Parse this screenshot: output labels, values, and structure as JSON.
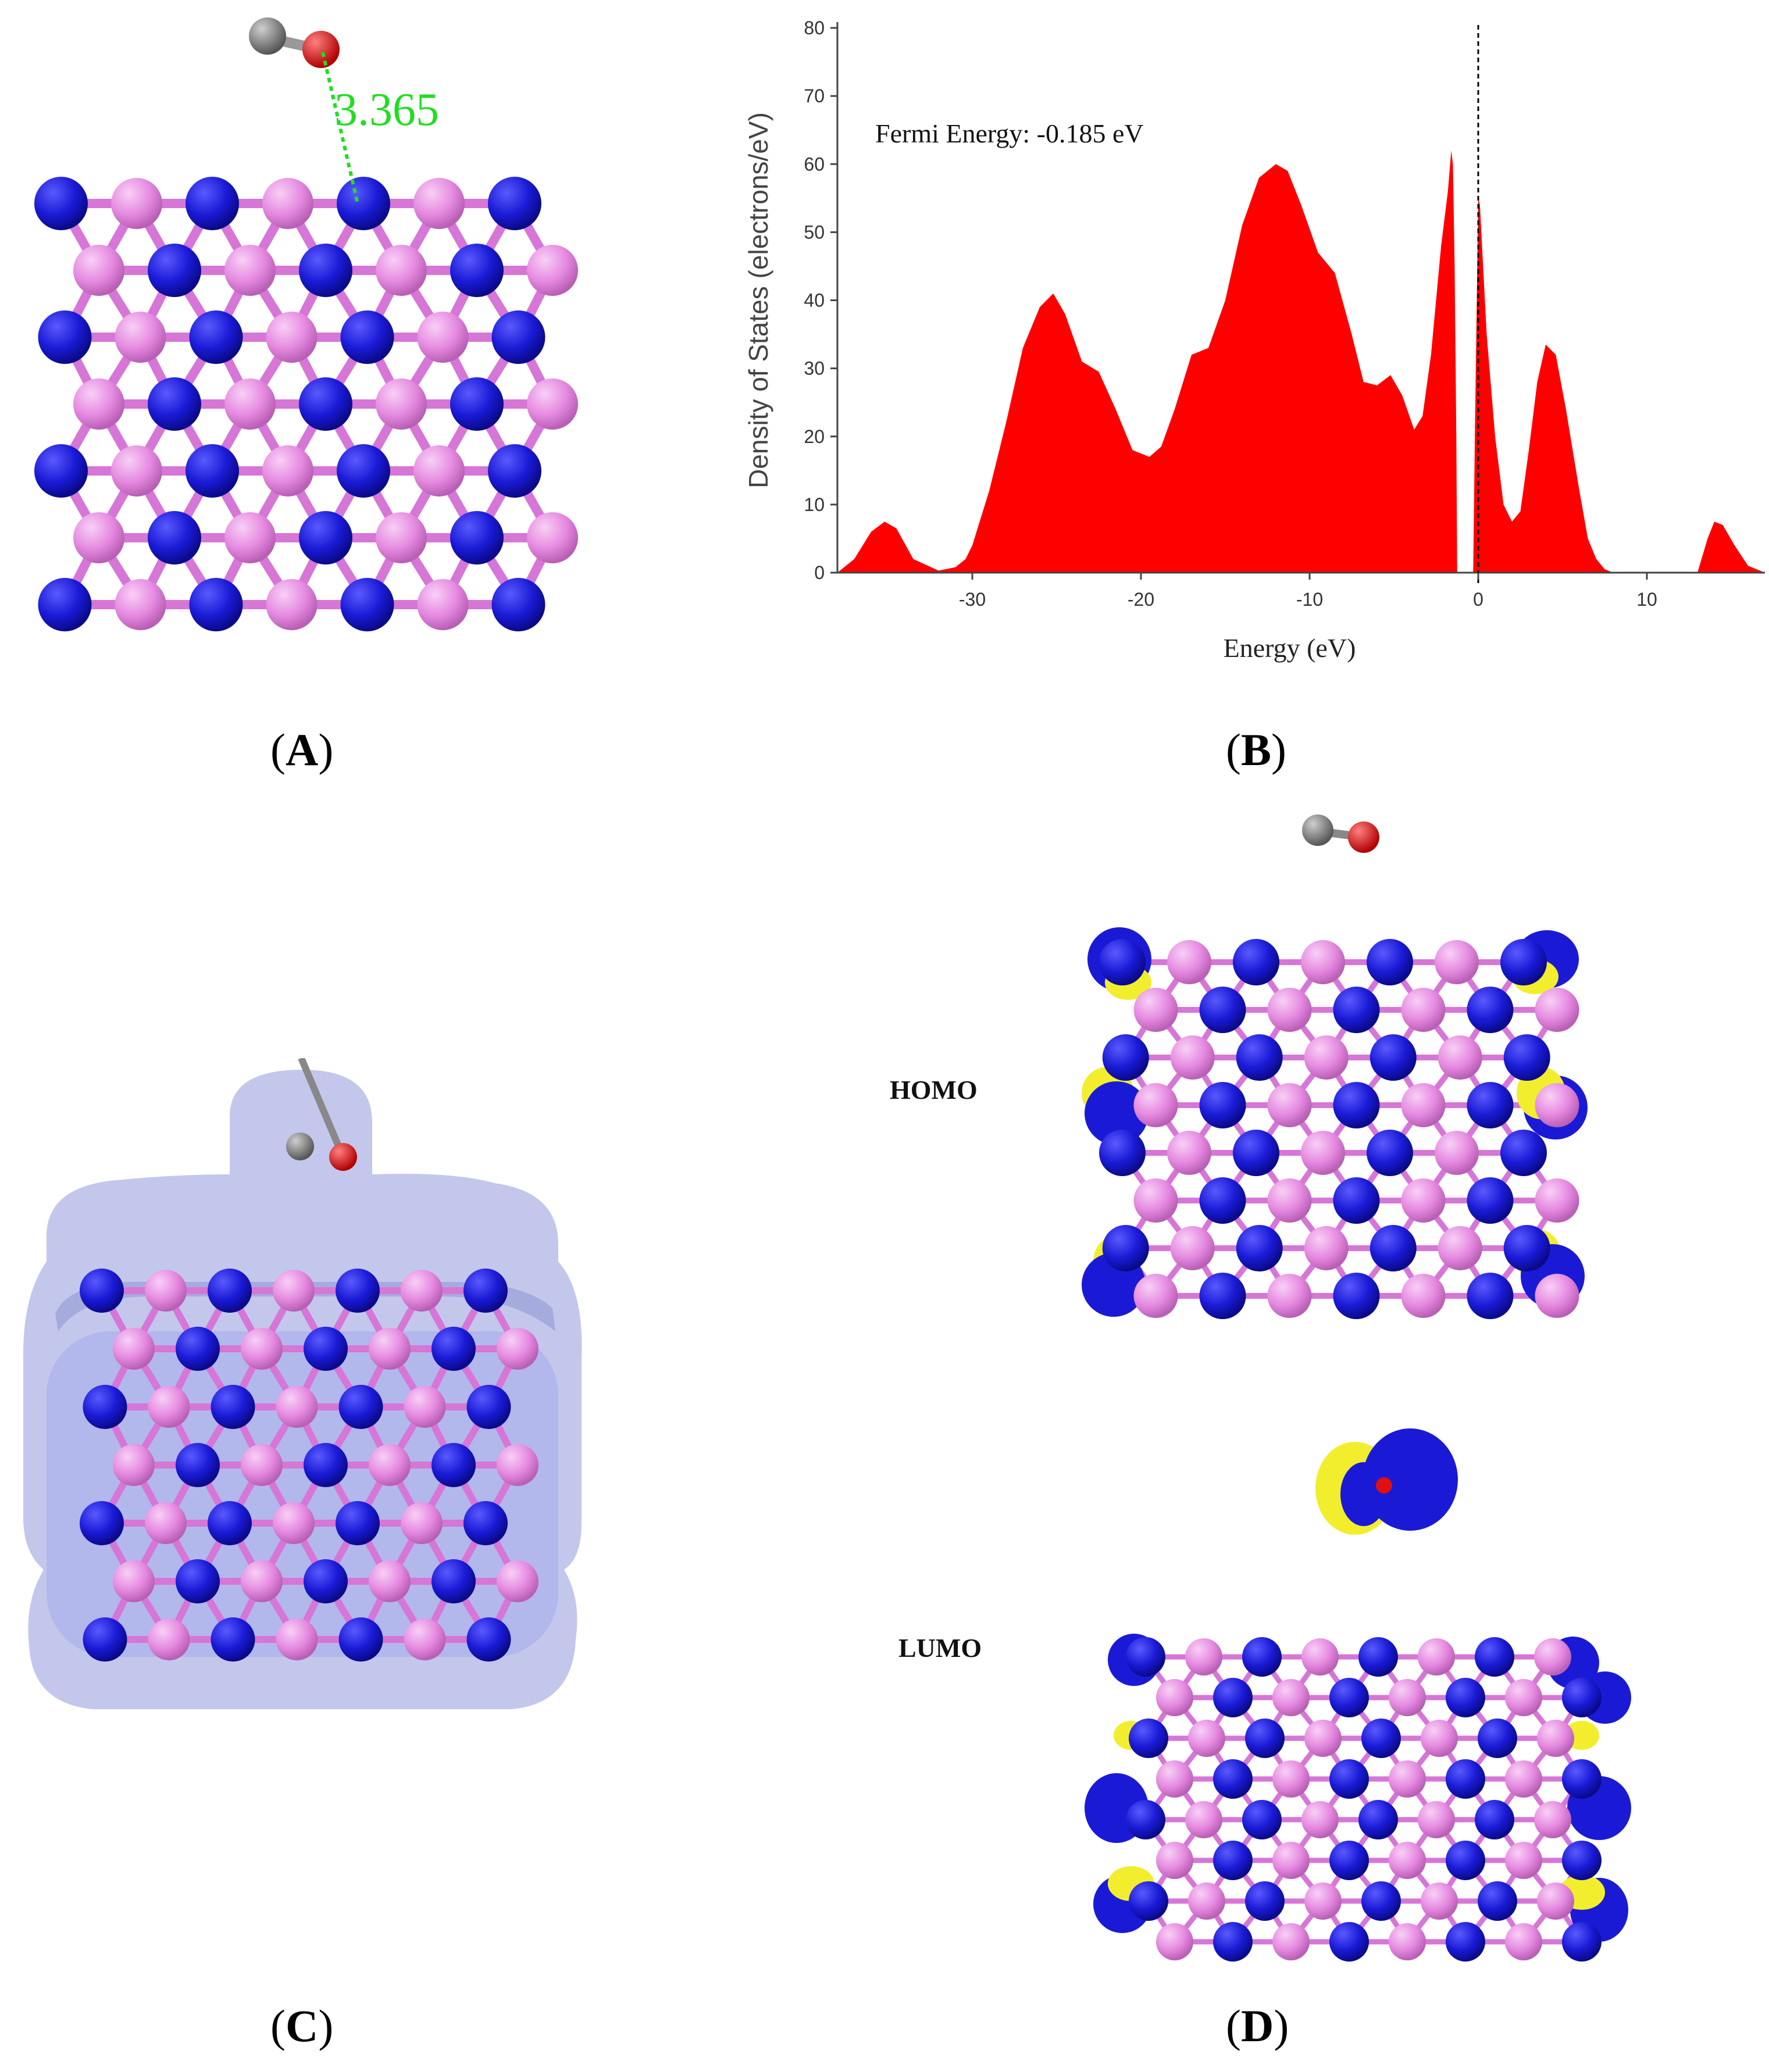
{
  "panels": {
    "a": {
      "label_letter": "A",
      "distance_label": "3.365"
    },
    "b": {
      "label_letter": "B"
    },
    "c": {
      "label_letter": "C"
    },
    "d": {
      "label_letter": "D",
      "homo_label": "HOMO",
      "lumo_label": "LUMO"
    }
  },
  "colors": {
    "nitrogen": "#1a1ad6",
    "boron": "#e58ae0",
    "bond": "#d676d6",
    "carbon": "#7a7a7a",
    "oxygen": "#e01010",
    "orbital_positive": "#f2ee2e",
    "dos_fill": "#ff0000",
    "distance": "#22dd22"
  },
  "chart_data": {
    "type": "area",
    "title": "",
    "annotation": "Fermi Energy: -0.185 eV",
    "xlabel": "Energy (eV)",
    "ylabel": "Density of States (electrons/eV)",
    "xlim": [
      -38,
      17
    ],
    "ylim": [
      0,
      80
    ],
    "x_ticks": [
      -30,
      -20,
      -10,
      0,
      10
    ],
    "y_ticks": [
      0,
      10,
      20,
      30,
      40,
      50,
      60,
      70,
      80
    ],
    "fermi_line_x": 0,
    "grid": false,
    "legend": "none",
    "series": [
      {
        "x": [
          -38,
          -37,
          -36,
          -35.2,
          -34.5,
          -33.5,
          -32,
          -31,
          -30.4,
          -30,
          -29.5,
          -29,
          -28,
          -27,
          -26,
          -25.2,
          -24.5,
          -23.5,
          -22.5,
          -21.5,
          -20.5,
          -19.5,
          -18.8,
          -18,
          -17,
          -16,
          -15,
          -14,
          -13,
          -12,
          -11.3,
          -10.5,
          -9.5,
          -8.5,
          -7.5,
          -6.8,
          -6,
          -5.2,
          -4.5,
          -3.8,
          -3.3,
          -2.8,
          -2.2,
          -1.8,
          -1.6,
          -1.5,
          -1.4,
          -1.3,
          -1.25,
          -0.3,
          -0.2,
          0,
          0.1,
          0.5,
          1,
          1.5,
          2,
          2.5,
          3,
          3.5,
          4,
          4.6,
          5.2,
          6,
          6.5,
          7,
          7.5,
          8,
          8.5,
          9,
          9.5,
          10,
          11,
          12,
          13,
          13.6,
          14,
          14.5,
          15.2,
          16,
          17
        ],
        "y": [
          0,
          2,
          6,
          7.5,
          6.5,
          2,
          0.3,
          0.8,
          2,
          4,
          8,
          12,
          22,
          33,
          39,
          41,
          38,
          31,
          29.5,
          24,
          18,
          17,
          18.5,
          24,
          32,
          33,
          40,
          51,
          58,
          60,
          59,
          54,
          47,
          44,
          35,
          28,
          27.5,
          29,
          26,
          21,
          23,
          32,
          48,
          56,
          62,
          60,
          45,
          20,
          0,
          0,
          20,
          55,
          54,
          35,
          20,
          10,
          7.5,
          9,
          18,
          28,
          33.5,
          32,
          24,
          12,
          5,
          2,
          0.5,
          0,
          0,
          0,
          0,
          0,
          0,
          0,
          0,
          5,
          7.5,
          7,
          4,
          1,
          0
        ]
      }
    ]
  }
}
